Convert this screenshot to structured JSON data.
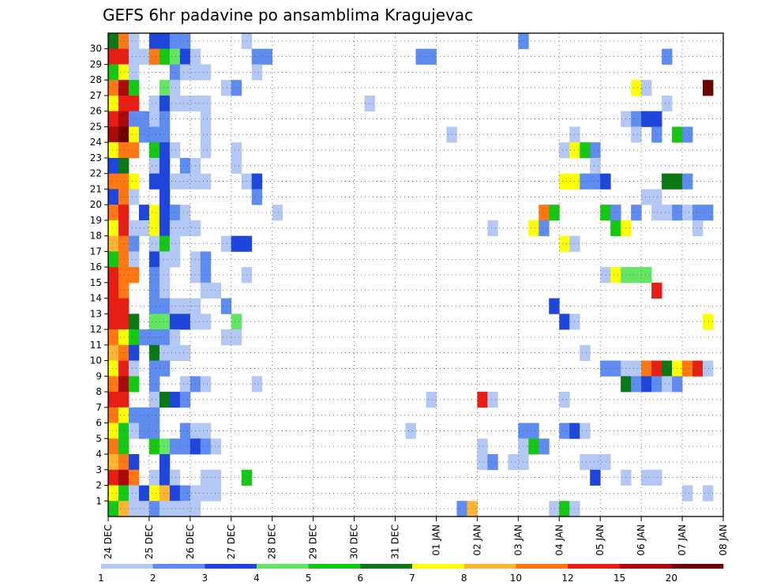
{
  "chart_data": {
    "type": "heatmap",
    "title": "GEFS 6hr padavine po ansamblima Kragujevac",
    "x_labels": [
      "24 DEC",
      "25 DEC",
      "26 DEC",
      "27 DEC",
      "28 DEC",
      "29 DEC",
      "30 DEC",
      "31 DEC",
      "01 JAN",
      "02 JAN",
      "03 JAN",
      "04 JAN",
      "05 JAN",
      "06 JAN",
      "07 JAN",
      "08 JAN"
    ],
    "x_range": [
      "24 DEC",
      "08 JAN"
    ],
    "y_labels": [
      "1",
      "2",
      "3",
      "4",
      "5",
      "6",
      "7",
      "8",
      "9",
      "10",
      "11",
      "12",
      "13",
      "14",
      "15",
      "16",
      "17",
      "18",
      "19",
      "20",
      "21",
      "22",
      "23",
      "24",
      "25",
      "26",
      "27",
      "28",
      "29",
      "30"
    ],
    "y_range": [
      0,
      30
    ],
    "grid": true,
    "legend": {
      "position": "bottom",
      "levels": [
        "1",
        "2",
        "3",
        "4",
        "5",
        "6",
        "7",
        "8",
        "10",
        "12",
        "15",
        "20"
      ],
      "colors": [
        "#b4c8f5",
        "#5f8cf0",
        "#1e46dc",
        "#64e664",
        "#14c814",
        "#0a7814",
        "#ffff00",
        "#ffb432",
        "#ff7814",
        "#e61e14",
        "#aa0a0a",
        "#6e0000"
      ]
    },
    "cells_note": "member, six-hour slot from 24 DEC 00UTC, category index (0 = 1-2 mm ... 11 = >20 mm)",
    "cells": [
      [
        30,
        0,
        5
      ],
      [
        30,
        1,
        8
      ],
      [
        30,
        2,
        0
      ],
      [
        30,
        4,
        2
      ],
      [
        30,
        5,
        2
      ],
      [
        30,
        6,
        1
      ],
      [
        30,
        7,
        1
      ],
      [
        30,
        13,
        0
      ],
      [
        30,
        40,
        1
      ],
      [
        29,
        0,
        9
      ],
      [
        29,
        1,
        9
      ],
      [
        29,
        2,
        0
      ],
      [
        29,
        3,
        0
      ],
      [
        29,
        4,
        8
      ],
      [
        29,
        5,
        4
      ],
      [
        29,
        6,
        3
      ],
      [
        29,
        7,
        2
      ],
      [
        29,
        8,
        0
      ],
      [
        29,
        14,
        1
      ],
      [
        29,
        15,
        1
      ],
      [
        29,
        30,
        1
      ],
      [
        29,
        31,
        1
      ],
      [
        29,
        54,
        1
      ],
      [
        28,
        0,
        4
      ],
      [
        28,
        1,
        6
      ],
      [
        28,
        2,
        0
      ],
      [
        28,
        6,
        1
      ],
      [
        28,
        7,
        0
      ],
      [
        28,
        8,
        0
      ],
      [
        28,
        9,
        0
      ],
      [
        28,
        14,
        0
      ],
      [
        27,
        0,
        8
      ],
      [
        27,
        1,
        10
      ],
      [
        27,
        2,
        4
      ],
      [
        27,
        5,
        3
      ],
      [
        27,
        6,
        0
      ],
      [
        27,
        11,
        0
      ],
      [
        27,
        12,
        1
      ],
      [
        27,
        51,
        6
      ],
      [
        27,
        52,
        0
      ],
      [
        27,
        58,
        11
      ],
      [
        26,
        0,
        6
      ],
      [
        26,
        1,
        9
      ],
      [
        26,
        2,
        9
      ],
      [
        26,
        4,
        0
      ],
      [
        26,
        5,
        2
      ],
      [
        26,
        6,
        0
      ],
      [
        26,
        7,
        0
      ],
      [
        26,
        8,
        0
      ],
      [
        26,
        9,
        0
      ],
      [
        26,
        25,
        0
      ],
      [
        26,
        54,
        0
      ],
      [
        25,
        0,
        9
      ],
      [
        25,
        1,
        10
      ],
      [
        25,
        2,
        1
      ],
      [
        25,
        3,
        1
      ],
      [
        25,
        4,
        0
      ],
      [
        25,
        5,
        1
      ],
      [
        25,
        9,
        0
      ],
      [
        25,
        50,
        0
      ],
      [
        25,
        51,
        1
      ],
      [
        25,
        52,
        2
      ],
      [
        25,
        53,
        2
      ],
      [
        24,
        0,
        10
      ],
      [
        24,
        1,
        11
      ],
      [
        24,
        2,
        6
      ],
      [
        24,
        3,
        1
      ],
      [
        24,
        4,
        1
      ],
      [
        24,
        5,
        1
      ],
      [
        24,
        9,
        0
      ],
      [
        24,
        33,
        0
      ],
      [
        24,
        45,
        0
      ],
      [
        24,
        51,
        0
      ],
      [
        24,
        53,
        1
      ],
      [
        24,
        55,
        4
      ],
      [
        24,
        56,
        1
      ],
      [
        23,
        0,
        6
      ],
      [
        23,
        1,
        8
      ],
      [
        23,
        2,
        8
      ],
      [
        23,
        4,
        4
      ],
      [
        23,
        5,
        2
      ],
      [
        23,
        6,
        0
      ],
      [
        23,
        9,
        0
      ],
      [
        23,
        12,
        0
      ],
      [
        23,
        44,
        0
      ],
      [
        23,
        45,
        6
      ],
      [
        23,
        46,
        4
      ],
      [
        23,
        47,
        1
      ],
      [
        22,
        0,
        2
      ],
      [
        22,
        1,
        5
      ],
      [
        22,
        4,
        0
      ],
      [
        22,
        5,
        2
      ],
      [
        22,
        7,
        1
      ],
      [
        22,
        8,
        0
      ],
      [
        22,
        12,
        0
      ],
      [
        22,
        47,
        0
      ],
      [
        21,
        0,
        8
      ],
      [
        21,
        1,
        8
      ],
      [
        21,
        2,
        6
      ],
      [
        21,
        4,
        2
      ],
      [
        21,
        5,
        2
      ],
      [
        21,
        6,
        0
      ],
      [
        21,
        7,
        0
      ],
      [
        21,
        8,
        0
      ],
      [
        21,
        9,
        0
      ],
      [
        21,
        13,
        0
      ],
      [
        21,
        14,
        2
      ],
      [
        21,
        44,
        6
      ],
      [
        21,
        45,
        6
      ],
      [
        21,
        46,
        1
      ],
      [
        21,
        47,
        1
      ],
      [
        21,
        48,
        2
      ],
      [
        21,
        54,
        5
      ],
      [
        21,
        55,
        5
      ],
      [
        21,
        56,
        1
      ],
      [
        20,
        0,
        2
      ],
      [
        20,
        1,
        8
      ],
      [
        20,
        2,
        0
      ],
      [
        20,
        5,
        2
      ],
      [
        20,
        14,
        1
      ],
      [
        20,
        52,
        0
      ],
      [
        20,
        53,
        0
      ],
      [
        19,
        0,
        8
      ],
      [
        19,
        1,
        9
      ],
      [
        19,
        3,
        2
      ],
      [
        19,
        4,
        6
      ],
      [
        19,
        5,
        2
      ],
      [
        19,
        6,
        1
      ],
      [
        19,
        7,
        0
      ],
      [
        19,
        16,
        0
      ],
      [
        19,
        42,
        8
      ],
      [
        19,
        43,
        4
      ],
      [
        19,
        48,
        4
      ],
      [
        19,
        49,
        1
      ],
      [
        19,
        51,
        1
      ],
      [
        19,
        53,
        0
      ],
      [
        19,
        54,
        0
      ],
      [
        19,
        55,
        1
      ],
      [
        19,
        56,
        0
      ],
      [
        19,
        57,
        1
      ],
      [
        19,
        58,
        1
      ],
      [
        18,
        0,
        6
      ],
      [
        18,
        1,
        9
      ],
      [
        18,
        2,
        0
      ],
      [
        18,
        3,
        0
      ],
      [
        18,
        4,
        6
      ],
      [
        18,
        5,
        2
      ],
      [
        18,
        6,
        0
      ],
      [
        18,
        7,
        0
      ],
      [
        18,
        8,
        0
      ],
      [
        18,
        37,
        0
      ],
      [
        18,
        41,
        6
      ],
      [
        18,
        42,
        1
      ],
      [
        18,
        49,
        4
      ],
      [
        18,
        50,
        6
      ],
      [
        18,
        57,
        0
      ],
      [
        17,
        0,
        7
      ],
      [
        17,
        1,
        8
      ],
      [
        17,
        2,
        1
      ],
      [
        17,
        4,
        0
      ],
      [
        17,
        5,
        4
      ],
      [
        17,
        6,
        0
      ],
      [
        17,
        11,
        0
      ],
      [
        17,
        12,
        2
      ],
      [
        17,
        13,
        2
      ],
      [
        17,
        44,
        6
      ],
      [
        17,
        45,
        0
      ],
      [
        16,
        0,
        4
      ],
      [
        16,
        1,
        8
      ],
      [
        16,
        2,
        0
      ],
      [
        16,
        4,
        2
      ],
      [
        16,
        5,
        0
      ],
      [
        16,
        6,
        0
      ],
      [
        16,
        8,
        0
      ],
      [
        16,
        9,
        1
      ],
      [
        15,
        0,
        9
      ],
      [
        15,
        1,
        8
      ],
      [
        15,
        2,
        8
      ],
      [
        15,
        4,
        1
      ],
      [
        15,
        5,
        0
      ],
      [
        15,
        8,
        0
      ],
      [
        15,
        9,
        1
      ],
      [
        15,
        13,
        0
      ],
      [
        15,
        48,
        0
      ],
      [
        15,
        49,
        6
      ],
      [
        15,
        50,
        3
      ],
      [
        15,
        51,
        3
      ],
      [
        15,
        52,
        3
      ],
      [
        14,
        0,
        9
      ],
      [
        14,
        1,
        8
      ],
      [
        14,
        4,
        1
      ],
      [
        14,
        5,
        0
      ],
      [
        14,
        9,
        0
      ],
      [
        14,
        10,
        0
      ],
      [
        14,
        53,
        9
      ],
      [
        13,
        0,
        9
      ],
      [
        13,
        1,
        9
      ],
      [
        13,
        4,
        1
      ],
      [
        13,
        5,
        1
      ],
      [
        13,
        6,
        0
      ],
      [
        13,
        7,
        0
      ],
      [
        13,
        8,
        0
      ],
      [
        13,
        11,
        1
      ],
      [
        13,
        43,
        2
      ],
      [
        12,
        0,
        9
      ],
      [
        12,
        1,
        9
      ],
      [
        12,
        2,
        5
      ],
      [
        12,
        4,
        3
      ],
      [
        12,
        5,
        3
      ],
      [
        12,
        6,
        2
      ],
      [
        12,
        7,
        2
      ],
      [
        12,
        8,
        0
      ],
      [
        12,
        9,
        0
      ],
      [
        12,
        12,
        3
      ],
      [
        12,
        44,
        2
      ],
      [
        12,
        45,
        0
      ],
      [
        12,
        58,
        6
      ],
      [
        11,
        0,
        8
      ],
      [
        11,
        1,
        6
      ],
      [
        11,
        2,
        4
      ],
      [
        11,
        3,
        1
      ],
      [
        11,
        4,
        1
      ],
      [
        11,
        5,
        1
      ],
      [
        11,
        6,
        0
      ],
      [
        11,
        11,
        0
      ],
      [
        11,
        12,
        0
      ],
      [
        10,
        0,
        7
      ],
      [
        10,
        1,
        8
      ],
      [
        10,
        2,
        2
      ],
      [
        10,
        4,
        5
      ],
      [
        10,
        5,
        0
      ],
      [
        10,
        6,
        0
      ],
      [
        10,
        7,
        0
      ],
      [
        10,
        46,
        0
      ],
      [
        9,
        0,
        6
      ],
      [
        9,
        1,
        9
      ],
      [
        9,
        2,
        0
      ],
      [
        9,
        4,
        1
      ],
      [
        9,
        5,
        1
      ],
      [
        9,
        48,
        1
      ],
      [
        9,
        49,
        1
      ],
      [
        9,
        50,
        0
      ],
      [
        9,
        51,
        0
      ],
      [
        9,
        52,
        8
      ],
      [
        9,
        53,
        9
      ],
      [
        9,
        54,
        5
      ],
      [
        9,
        55,
        6
      ],
      [
        9,
        56,
        8
      ],
      [
        9,
        57,
        9
      ],
      [
        9,
        58,
        0
      ],
      [
        8,
        0,
        8
      ],
      [
        8,
        1,
        10
      ],
      [
        8,
        2,
        4
      ],
      [
        8,
        4,
        1
      ],
      [
        8,
        7,
        0
      ],
      [
        8,
        8,
        1
      ],
      [
        8,
        9,
        0
      ],
      [
        8,
        14,
        0
      ],
      [
        8,
        50,
        5
      ],
      [
        8,
        51,
        1
      ],
      [
        8,
        52,
        2
      ],
      [
        8,
        53,
        1
      ],
      [
        8,
        54,
        0
      ],
      [
        8,
        55,
        1
      ],
      [
        7,
        0,
        9
      ],
      [
        7,
        1,
        9
      ],
      [
        7,
        4,
        0
      ],
      [
        7,
        5,
        5
      ],
      [
        7,
        6,
        2
      ],
      [
        7,
        7,
        1
      ],
      [
        7,
        31,
        0
      ],
      [
        7,
        36,
        9
      ],
      [
        7,
        37,
        0
      ],
      [
        7,
        44,
        0
      ],
      [
        6,
        0,
        8
      ],
      [
        6,
        1,
        6
      ],
      [
        6,
        2,
        1
      ],
      [
        6,
        3,
        1
      ],
      [
        6,
        4,
        1
      ],
      [
        5,
        0,
        6
      ],
      [
        5,
        1,
        4
      ],
      [
        5,
        2,
        0
      ],
      [
        5,
        3,
        1
      ],
      [
        5,
        4,
        1
      ],
      [
        5,
        7,
        1
      ],
      [
        5,
        8,
        0
      ],
      [
        5,
        9,
        0
      ],
      [
        5,
        29,
        0
      ],
      [
        5,
        40,
        1
      ],
      [
        5,
        41,
        1
      ],
      [
        5,
        44,
        1
      ],
      [
        5,
        45,
        2
      ],
      [
        5,
        46,
        0
      ],
      [
        4,
        0,
        8
      ],
      [
        4,
        1,
        4
      ],
      [
        4,
        4,
        4
      ],
      [
        4,
        5,
        3
      ],
      [
        4,
        6,
        1
      ],
      [
        4,
        7,
        1
      ],
      [
        4,
        8,
        2
      ],
      [
        4,
        9,
        1
      ],
      [
        4,
        10,
        0
      ],
      [
        4,
        36,
        0
      ],
      [
        4,
        40,
        0
      ],
      [
        4,
        41,
        4
      ],
      [
        4,
        42,
        1
      ],
      [
        3,
        0,
        7
      ],
      [
        3,
        1,
        8
      ],
      [
        3,
        2,
        2
      ],
      [
        3,
        5,
        2
      ],
      [
        3,
        36,
        0
      ],
      [
        3,
        37,
        1
      ],
      [
        3,
        39,
        0
      ],
      [
        3,
        40,
        0
      ],
      [
        3,
        46,
        0
      ],
      [
        3,
        47,
        0
      ],
      [
        3,
        48,
        0
      ],
      [
        2,
        0,
        9
      ],
      [
        2,
        1,
        10
      ],
      [
        2,
        2,
        8
      ],
      [
        2,
        4,
        0
      ],
      [
        2,
        5,
        2
      ],
      [
        2,
        6,
        0
      ],
      [
        2,
        9,
        0
      ],
      [
        2,
        10,
        0
      ],
      [
        2,
        13,
        4
      ],
      [
        2,
        47,
        2
      ],
      [
        2,
        50,
        0
      ],
      [
        2,
        52,
        0
      ],
      [
        2,
        53,
        0
      ],
      [
        1,
        0,
        6
      ],
      [
        1,
        1,
        4
      ],
      [
        1,
        2,
        0
      ],
      [
        1,
        3,
        2
      ],
      [
        1,
        4,
        6
      ],
      [
        1,
        5,
        7
      ],
      [
        1,
        6,
        2
      ],
      [
        1,
        7,
        1
      ],
      [
        1,
        8,
        0
      ],
      [
        1,
        9,
        0
      ],
      [
        1,
        10,
        0
      ],
      [
        1,
        56,
        0
      ],
      [
        1,
        58,
        0
      ],
      [
        0,
        0,
        4
      ],
      [
        0,
        1,
        7
      ],
      [
        0,
        2,
        0
      ],
      [
        0,
        3,
        0
      ],
      [
        0,
        4,
        1
      ],
      [
        0,
        5,
        0
      ],
      [
        0,
        6,
        0
      ],
      [
        0,
        7,
        0
      ],
      [
        0,
        8,
        0
      ],
      [
        0,
        34,
        1
      ],
      [
        0,
        35,
        7
      ],
      [
        0,
        43,
        0
      ],
      [
        0,
        44,
        4
      ],
      [
        0,
        45,
        0
      ]
    ]
  }
}
